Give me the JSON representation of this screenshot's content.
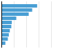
{
  "chart_data": {
    "type": "bar",
    "orientation": "horizontal",
    "categories": [
      null,
      null,
      null,
      null,
      null,
      null,
      null,
      null,
      null,
      null
    ],
    "values": [
      72,
      62,
      55,
      30,
      21,
      20,
      17,
      15,
      13,
      8
    ],
    "color": "#4a9fd4",
    "xlim": [
      0,
      100
    ],
    "xticks": [
      25,
      50,
      75,
      100
    ],
    "grid": true,
    "tick_labels": false
  }
}
